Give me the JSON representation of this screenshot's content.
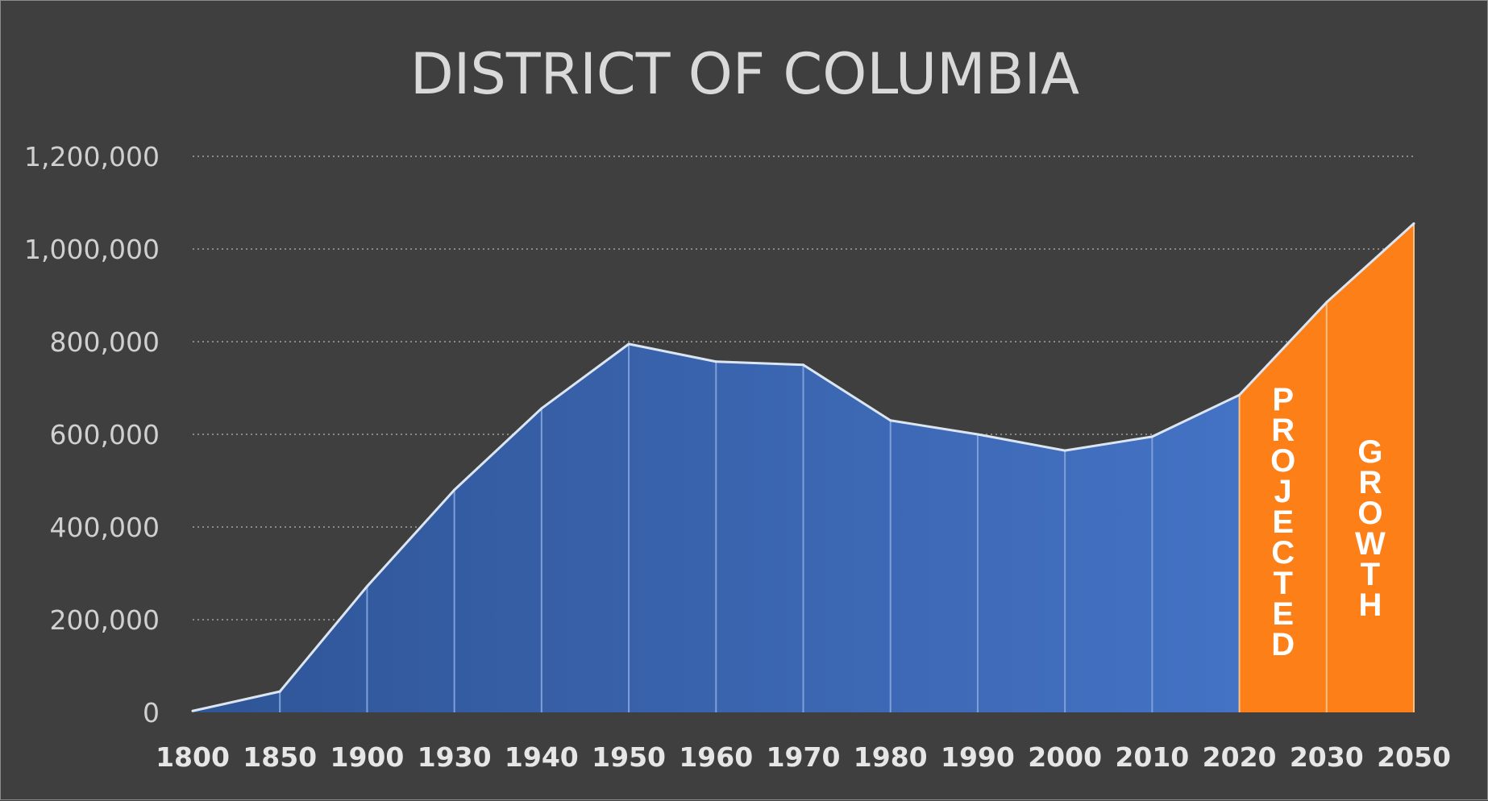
{
  "chart_data": {
    "type": "area",
    "title": "DISTRICT OF COLUMBIA",
    "xlabel": "",
    "ylabel": "",
    "ylim": [
      0,
      1200000
    ],
    "yticks": [
      0,
      200000,
      400000,
      600000,
      800000,
      1000000,
      1200000
    ],
    "ytick_labels": [
      "0",
      "200,000",
      "400,000",
      "600,000",
      "800,000",
      "1,000,000",
      "1,200,000"
    ],
    "categories": [
      "1800",
      "1850",
      "1900",
      "1930",
      "1940",
      "1950",
      "1960",
      "1970",
      "1980",
      "1990",
      "2000",
      "2010",
      "2020",
      "2030",
      "2050"
    ],
    "values": [
      3000,
      45000,
      272000,
      480000,
      656000,
      795000,
      757000,
      750000,
      630000,
      600000,
      565000,
      595000,
      685000,
      885000,
      1055000
    ],
    "projected_from_index": 12,
    "grid": "horizontal-dotted",
    "legend": "none",
    "annotations": [
      {
        "text": "PROJECTED",
        "region": "2020-2030"
      },
      {
        "text": "GROWTH",
        "region": "2030-2050"
      }
    ],
    "colors": {
      "background": "#3f3f3f",
      "historical_area_start": "#2f5597",
      "historical_area_end": "#4472c4",
      "projected_area": "#fd7f17",
      "line": "#dce6f2",
      "grid": "#8a8a8a"
    }
  }
}
